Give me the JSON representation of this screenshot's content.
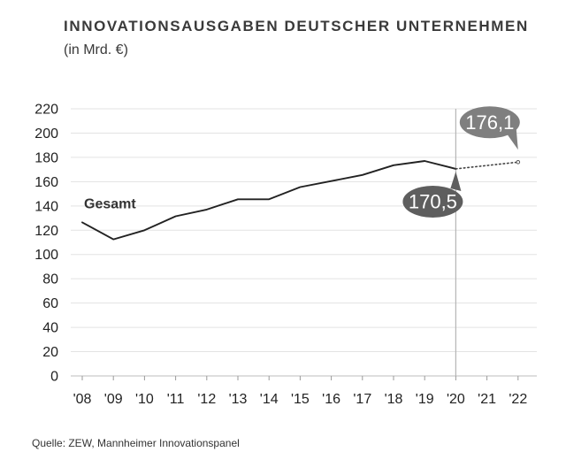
{
  "chart_data": {
    "type": "line",
    "title": "INNOVATIONSAUSGABEN DEUTSCHER UNTERNEHMEN",
    "subtitle": "(in Mrd. €)",
    "source": "Quelle: ZEW, Mannheimer Innovationspanel",
    "categories": [
      "'08",
      "'09",
      "'10",
      "'11",
      "'12",
      "'13",
      "'14",
      "'15",
      "'16",
      "'17",
      "'18",
      "'19",
      "'20",
      "'21",
      "'22"
    ],
    "yticks": [
      "0",
      "20",
      "40",
      "60",
      "80",
      "100",
      "120",
      "140",
      "160",
      "180",
      "200",
      "220"
    ],
    "ylim": [
      0,
      220
    ],
    "grid": true,
    "series": [
      {
        "name": "Gesamt",
        "style": "solid",
        "color": "#222222",
        "values": [
          126.5,
          112.5,
          120,
          131.5,
          137,
          145.5,
          145.5,
          155.5,
          160.5,
          165.5,
          173.5,
          177,
          170.5,
          null,
          null
        ]
      },
      {
        "name": "",
        "style": "dotted",
        "color": "#444444",
        "values": [
          null,
          null,
          null,
          null,
          null,
          null,
          null,
          null,
          null,
          null,
          null,
          null,
          170.5,
          173.3,
          176.1
        ]
      }
    ],
    "annotations": [
      {
        "label": "170,5",
        "category": "'20",
        "value": 170.5,
        "fill": "#5e5e5e",
        "text_color": "#ffffff"
      },
      {
        "label": "176,1",
        "category": "'22",
        "value": 176.1,
        "fill": "#7f7f7f",
        "text_color": "#ffffff"
      }
    ],
    "divider_category": "'20"
  }
}
